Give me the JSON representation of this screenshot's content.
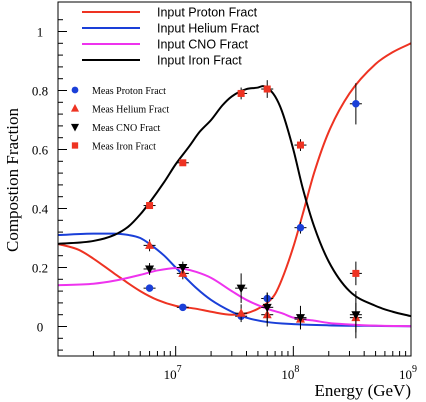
{
  "chart_data": {
    "type": "line",
    "title": "",
    "xlabel": "Energy (GeV)",
    "ylabel": "Compostion Fraction",
    "xscale": "log",
    "xlim": [
      1000000,
      1000000000
    ],
    "ylim": [
      -0.1,
      1.1
    ],
    "x_tick_labels": [
      {
        "base": "10",
        "exp": "7"
      },
      {
        "base": "10",
        "exp": "8"
      },
      {
        "base": "10",
        "exp": "9"
      }
    ],
    "y_ticks": [
      0,
      0.2,
      0.4,
      0.6,
      0.8,
      1
    ],
    "y_tick_labels": [
      "0",
      "0.2",
      "0.4",
      "0.6",
      "0.8",
      "1"
    ],
    "grid": false,
    "legend_lines_placement": "top",
    "legend_points_placement": "upper-left",
    "line_series": [
      {
        "name": "Input Proton Fract",
        "color": "#ee3322",
        "x": [
          1000000,
          1500000,
          2000000,
          3000000,
          5000000,
          7000000,
          10000000,
          15000000,
          20000000,
          30000000,
          40000000,
          50000000,
          60000000,
          70000000,
          80000000,
          100000000,
          120000000,
          150000000,
          200000000,
          300000000,
          500000000,
          700000000,
          1000000000
        ],
        "y": [
          0.28,
          0.26,
          0.23,
          0.18,
          0.12,
          0.09,
          0.07,
          0.06,
          0.05,
          0.04,
          0.045,
          0.06,
          0.08,
          0.11,
          0.16,
          0.27,
          0.38,
          0.52,
          0.66,
          0.79,
          0.89,
          0.93,
          0.96
        ]
      },
      {
        "name": "Input Helium Fract",
        "color": "#1a3fd8",
        "x": [
          1000000,
          2000000,
          3000000,
          4000000,
          5000000,
          6000000,
          8000000,
          10000000,
          15000000,
          20000000,
          30000000,
          40000000,
          60000000,
          100000000,
          200000000,
          500000000,
          1000000000
        ],
        "y": [
          0.31,
          0.315,
          0.315,
          0.31,
          0.3,
          0.28,
          0.24,
          0.2,
          0.13,
          0.09,
          0.05,
          0.03,
          0.015,
          0.008,
          0.004,
          0.002,
          0.001
        ]
      },
      {
        "name": "Input CNO Fract",
        "color": "#ee33ee",
        "x": [
          1000000,
          2000000,
          3000000,
          5000000,
          7000000,
          10000000,
          12000000,
          15000000,
          20000000,
          30000000,
          40000000,
          60000000,
          80000000,
          100000000,
          150000000,
          200000000,
          300000000,
          500000000,
          1000000000
        ],
        "y": [
          0.14,
          0.145,
          0.155,
          0.175,
          0.19,
          0.198,
          0.195,
          0.185,
          0.165,
          0.12,
          0.09,
          0.06,
          0.045,
          0.03,
          0.02,
          0.012,
          0.007,
          0.003,
          0.001
        ]
      },
      {
        "name": "Input Iron Fract",
        "color": "#000000",
        "x": [
          1000000,
          2000000,
          3000000,
          4000000,
          5000000,
          6000000,
          8000000,
          10000000,
          13000000,
          16000000,
          20000000,
          25000000,
          30000000,
          40000000,
          50000000,
          55000000,
          60000000,
          70000000,
          80000000,
          100000000,
          120000000,
          150000000,
          200000000,
          300000000,
          500000000,
          700000000,
          1000000000
        ],
        "y": [
          0.28,
          0.29,
          0.31,
          0.34,
          0.38,
          0.42,
          0.49,
          0.55,
          0.61,
          0.66,
          0.7,
          0.75,
          0.78,
          0.805,
          0.81,
          0.815,
          0.81,
          0.78,
          0.73,
          0.6,
          0.47,
          0.34,
          0.22,
          0.12,
          0.07,
          0.05,
          0.035
        ]
      }
    ],
    "marker_series": [
      {
        "name": "Meas Proton Fract",
        "marker": "circle",
        "color": "#1a3fd8",
        "x": [
          6000000,
          11500000,
          36000000,
          60000000,
          115000000,
          340000000
        ],
        "y": [
          0.13,
          0.065,
          0.035,
          0.095,
          0.335,
          0.755
        ],
        "yerr": [
          0.01,
          0.01,
          0.01,
          0.02,
          0.02,
          0.07
        ]
      },
      {
        "name": "Meas Helium Fract",
        "marker": "triangle-up",
        "color": "#ee3322",
        "x": [
          6000000,
          11500000,
          36000000,
          60000000,
          115000000,
          340000000
        ],
        "y": [
          0.275,
          0.18,
          0.045,
          0.04,
          0.025,
          0.03
        ],
        "yerr": [
          0.02,
          0.02,
          0.03,
          0.04,
          0.03,
          0.05
        ]
      },
      {
        "name": "Meas CNO Fract",
        "marker": "triangle-down",
        "color": "#000000",
        "x": [
          6000000,
          11500000,
          36000000,
          60000000,
          115000000,
          340000000
        ],
        "y": [
          0.195,
          0.2,
          0.13,
          0.065,
          0.03,
          0.04
        ],
        "yerr": [
          0.02,
          0.02,
          0.05,
          0.05,
          0.04,
          0.08
        ]
      },
      {
        "name": "Meas Iron Fract",
        "marker": "square",
        "color": "#ee3322",
        "x": [
          6000000,
          11500000,
          36000000,
          60000000,
          115000000,
          340000000
        ],
        "y": [
          0.41,
          0.555,
          0.79,
          0.805,
          0.615,
          0.18
        ],
        "yerr": [
          0.01,
          0.01,
          0.02,
          0.03,
          0.02,
          0.04
        ]
      }
    ]
  }
}
